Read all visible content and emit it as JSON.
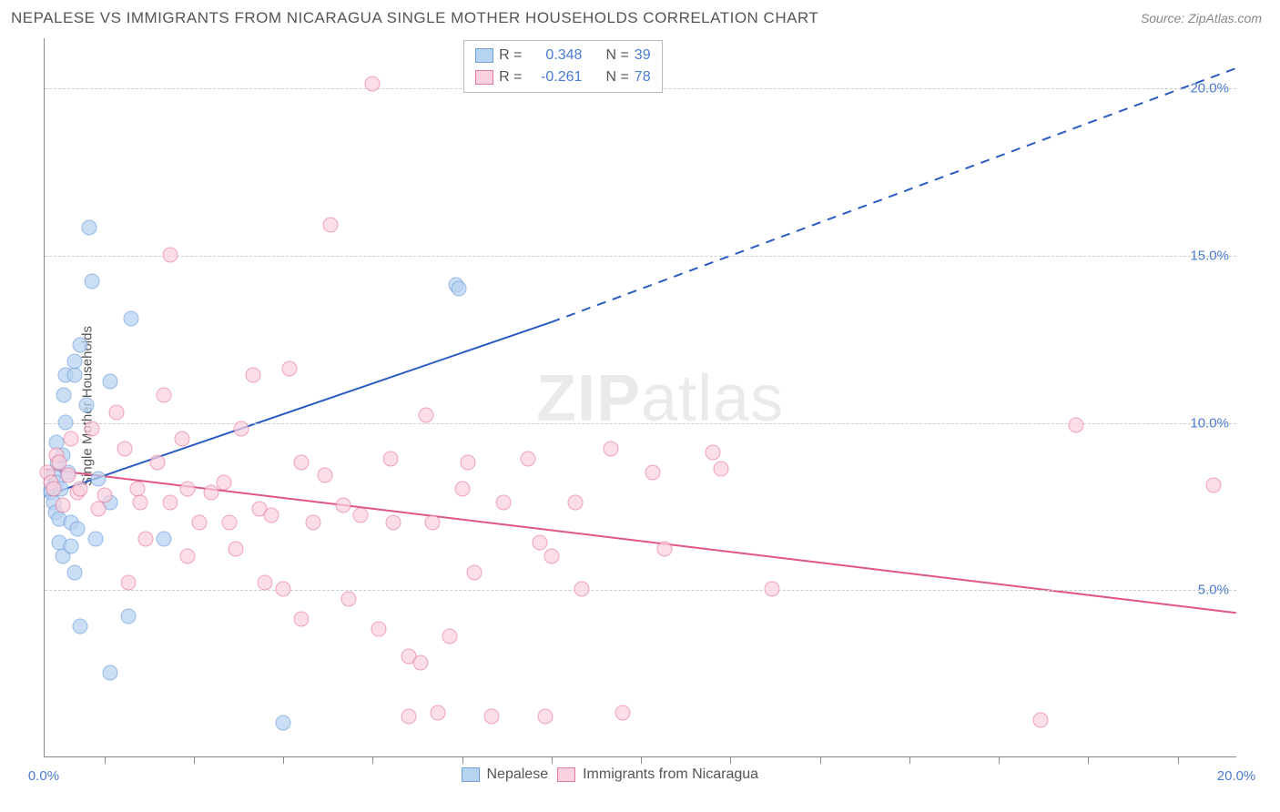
{
  "header": {
    "title": "NEPALESE VS IMMIGRANTS FROM NICARAGUA SINGLE MOTHER HOUSEHOLDS CORRELATION CHART",
    "source": "Source: ZipAtlas.com"
  },
  "chart": {
    "type": "scatter",
    "y_axis_label": "Single Mother Households",
    "background_color": "#ffffff",
    "grid_color": "#cccccc",
    "axis_color": "#888888",
    "x_range": [
      0,
      20
    ],
    "y_range": [
      0,
      21.5
    ],
    "y_ticks": [
      {
        "value": 5.0,
        "label": "5.0%"
      },
      {
        "value": 10.0,
        "label": "10.0%"
      },
      {
        "value": 15.0,
        "label": "15.0%"
      },
      {
        "value": 20.0,
        "label": "20.0%"
      }
    ],
    "y_tick_color": "#4a7bd0",
    "x_tick_positions": [
      1.0,
      2.5,
      4.0,
      5.5,
      7.0,
      8.5,
      10.0,
      11.5,
      13.0,
      14.5,
      16.0,
      17.5,
      19.0
    ],
    "x_labels": [
      {
        "value": 0.0,
        "label": "0.0%"
      },
      {
        "value": 20.0,
        "label": "20.0%"
      }
    ],
    "watermark": {
      "bold": "ZIP",
      "light": "atlas"
    },
    "series": [
      {
        "name": "Nepalese",
        "marker_fill": "#b7d3f2",
        "marker_stroke": "#6f9fdd",
        "marker_opacity": 0.72,
        "marker_size": 17,
        "trend_color": "#2a5bc4",
        "trend_width": 2,
        "trend": {
          "x1": 0.0,
          "y1": 7.8,
          "x2_solid": 8.5,
          "y2_solid": 13.0,
          "x2_dash": 20.0,
          "y2_dash": 20.6
        },
        "R_label": "R =",
        "R_value": "0.348",
        "N_label": "N =",
        "N_value": "39",
        "points": [
          [
            0.1,
            8.0
          ],
          [
            0.1,
            7.9
          ],
          [
            0.15,
            8.4
          ],
          [
            0.15,
            7.6
          ],
          [
            0.2,
            8.2
          ],
          [
            0.18,
            7.3
          ],
          [
            0.2,
            9.4
          ],
          [
            0.22,
            8.8
          ],
          [
            0.25,
            7.1
          ],
          [
            0.25,
            6.4
          ],
          [
            0.3,
            6.0
          ],
          [
            0.3,
            9.0
          ],
          [
            0.32,
            10.8
          ],
          [
            0.35,
            10.0
          ],
          [
            0.35,
            11.4
          ],
          [
            0.4,
            8.5
          ],
          [
            0.45,
            6.3
          ],
          [
            0.45,
            7.0
          ],
          [
            0.5,
            11.4
          ],
          [
            0.5,
            11.8
          ],
          [
            0.6,
            12.3
          ],
          [
            0.7,
            10.5
          ],
          [
            0.75,
            15.8
          ],
          [
            0.8,
            14.2
          ],
          [
            0.85,
            6.5
          ],
          [
            1.1,
            11.2
          ],
          [
            1.4,
            4.2
          ],
          [
            1.45,
            13.1
          ],
          [
            2.0,
            6.5
          ],
          [
            1.1,
            7.6
          ],
          [
            0.9,
            8.3
          ],
          [
            0.6,
            3.9
          ],
          [
            1.1,
            2.5
          ],
          [
            4.0,
            1.0
          ],
          [
            6.9,
            14.1
          ],
          [
            6.95,
            14.0
          ],
          [
            0.5,
            5.5
          ],
          [
            0.55,
            6.8
          ],
          [
            0.28,
            8.0
          ]
        ]
      },
      {
        "name": "Immigrants from Nicaragua",
        "marker_fill": "#fad1de",
        "marker_stroke": "#e77b9e",
        "marker_opacity": 0.7,
        "marker_size": 17,
        "trend_color": "#e05582",
        "trend_width": 2,
        "trend": {
          "x1": 0.0,
          "y1": 8.6,
          "x2_solid": 20.0,
          "y2_solid": 4.3,
          "x2_dash": 20.0,
          "y2_dash": 4.3
        },
        "R_label": "R =",
        "R_value": "-0.261",
        "N_label": "N =",
        "N_value": "78",
        "points": [
          [
            0.05,
            8.5
          ],
          [
            0.1,
            8.2
          ],
          [
            0.15,
            8.0
          ],
          [
            0.2,
            9.0
          ],
          [
            0.25,
            8.8
          ],
          [
            0.3,
            7.5
          ],
          [
            0.4,
            8.4
          ],
          [
            0.45,
            9.5
          ],
          [
            0.55,
            7.9
          ],
          [
            0.6,
            8.0
          ],
          [
            0.8,
            9.8
          ],
          [
            1.0,
            7.8
          ],
          [
            1.2,
            10.3
          ],
          [
            1.35,
            9.2
          ],
          [
            1.55,
            8.0
          ],
          [
            1.6,
            7.6
          ],
          [
            1.7,
            6.5
          ],
          [
            1.9,
            8.8
          ],
          [
            2.1,
            7.6
          ],
          [
            2.1,
            15.0
          ],
          [
            2.3,
            9.5
          ],
          [
            2.4,
            8.0
          ],
          [
            2.6,
            7.0
          ],
          [
            2.8,
            7.9
          ],
          [
            3.0,
            8.2
          ],
          [
            3.1,
            7.0
          ],
          [
            3.3,
            9.8
          ],
          [
            3.5,
            11.4
          ],
          [
            3.6,
            7.4
          ],
          [
            3.8,
            7.2
          ],
          [
            4.0,
            5.0
          ],
          [
            4.1,
            11.6
          ],
          [
            4.3,
            8.8
          ],
          [
            4.5,
            7.0
          ],
          [
            4.7,
            8.4
          ],
          [
            4.8,
            15.9
          ],
          [
            5.0,
            7.5
          ],
          [
            5.1,
            4.7
          ],
          [
            5.3,
            7.2
          ],
          [
            5.5,
            20.1
          ],
          [
            5.6,
            3.8
          ],
          [
            5.8,
            8.9
          ],
          [
            5.85,
            7.0
          ],
          [
            6.1,
            3.0
          ],
          [
            6.1,
            1.2
          ],
          [
            6.3,
            2.8
          ],
          [
            6.4,
            10.2
          ],
          [
            6.5,
            7.0
          ],
          [
            6.6,
            1.3
          ],
          [
            6.8,
            3.6
          ],
          [
            7.0,
            8.0
          ],
          [
            7.1,
            8.8
          ],
          [
            7.2,
            5.5
          ],
          [
            7.5,
            1.2
          ],
          [
            7.7,
            7.6
          ],
          [
            8.1,
            8.9
          ],
          [
            8.3,
            6.4
          ],
          [
            8.4,
            1.2
          ],
          [
            8.5,
            6.0
          ],
          [
            8.9,
            7.6
          ],
          [
            9.0,
            5.0
          ],
          [
            9.5,
            9.2
          ],
          [
            9.7,
            1.3
          ],
          [
            10.2,
            8.5
          ],
          [
            10.4,
            6.2
          ],
          [
            11.2,
            9.1
          ],
          [
            11.35,
            8.6
          ],
          [
            12.2,
            5.0
          ],
          [
            16.7,
            1.1
          ],
          [
            17.3,
            9.9
          ],
          [
            19.6,
            8.1
          ],
          [
            4.3,
            4.1
          ],
          [
            3.2,
            6.2
          ],
          [
            2.4,
            6.0
          ],
          [
            2.0,
            10.8
          ],
          [
            1.4,
            5.2
          ],
          [
            0.9,
            7.4
          ],
          [
            3.7,
            5.2
          ]
        ]
      }
    ],
    "legend_bottom": {
      "items": [
        {
          "name": "Nepalese",
          "fill": "#b7d3f2",
          "stroke": "#6f9fdd"
        },
        {
          "name": "Immigrants from Nicaragua",
          "fill": "#fad1de",
          "stroke": "#e77b9e"
        }
      ]
    }
  }
}
